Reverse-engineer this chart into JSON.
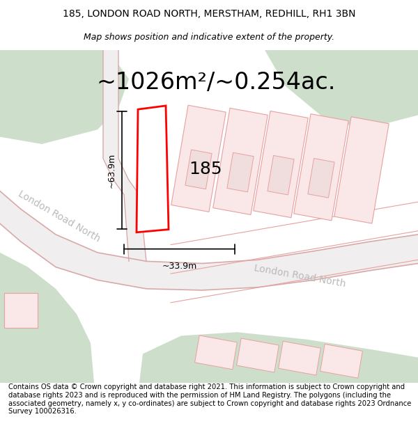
{
  "title_line1": "185, LONDON ROAD NORTH, MERSTHAM, REDHILL, RH1 3BN",
  "title_line2": "Map shows position and indicative extent of the property.",
  "area_text": "~1026m²/~0.254ac.",
  "number_label": "185",
  "dim_vertical": "~63.9m",
  "dim_horizontal": "~33.9m",
  "road_label1": "London Road North",
  "road_label2": "London Road North",
  "footer_text": "Contains OS data © Crown copyright and database right 2021. This information is subject to Crown copyright and database rights 2023 and is reproduced with the permission of HM Land Registry. The polygons (including the associated geometry, namely x, y co-ordinates) are subject to Crown copyright and database rights 2023 Ordnance Survey 100026316.",
  "bg_color": "#ffffff",
  "map_bg_color": "#f5f5f5",
  "green_color": "#cddecb",
  "road_fill": "#f0eeee",
  "road_line_color": "#d9a9a9",
  "plot_outline_color": "#ff0000",
  "plot_fill_color": "#ffffff",
  "other_plot_fill": "#fae8e8",
  "other_plot_edge": "#e8a0a0",
  "dim_color": "#000000",
  "road_text_color": "#bbbbbb",
  "title_fontsize": 10,
  "subtitle_fontsize": 9,
  "area_fontsize": 24,
  "number_fontsize": 18,
  "road_label_fontsize": 10,
  "dim_fontsize": 9,
  "footer_fontsize": 7.2
}
